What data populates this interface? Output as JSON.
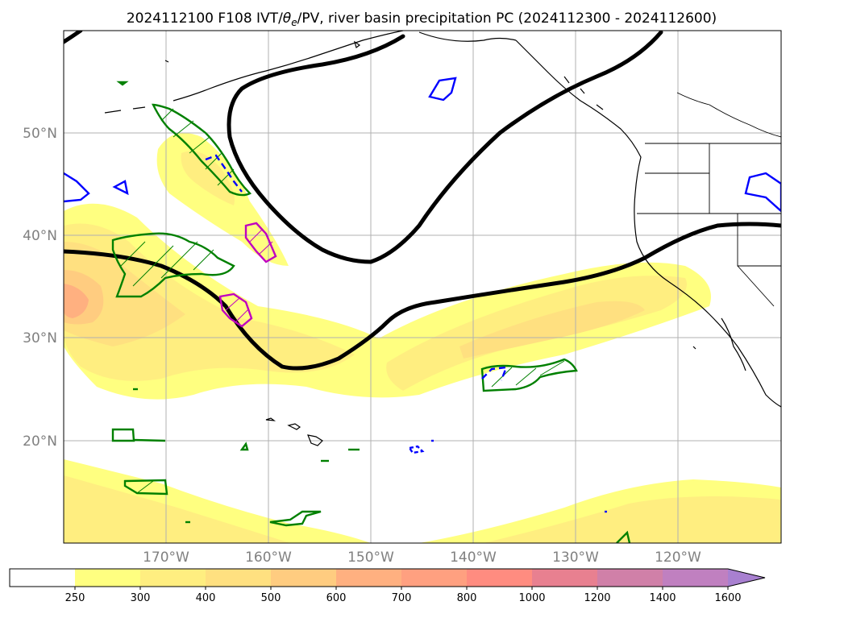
{
  "title": {
    "prefix": "2024112100 F108 IVT/",
    "theta": "θ",
    "subscript": "e",
    "suffix": "/PV, river basin precipitation PC (2024112300 - 2024112600)"
  },
  "latitude_labels": [
    "50°N",
    "40°N",
    "30°N",
    "20°N"
  ],
  "longitude_labels": [
    "170°W",
    "160°W",
    "150°W",
    "140°W",
    "130°W",
    "120°W"
  ],
  "colorbar": {
    "ticks": [
      "250",
      "300",
      "400",
      "500",
      "600",
      "700",
      "800",
      "1000",
      "1200",
      "1400",
      "1600"
    ],
    "colors": [
      "#ffffff",
      "#ffff80",
      "#ffee80",
      "#ffe080",
      "#ffcc80",
      "#ffb080",
      "#ffa080",
      "#ff8c80",
      "#e88090",
      "#d080a8",
      "#c080c0",
      "#a880d0"
    ],
    "extend": "max"
  },
  "chart_data": {
    "type": "map",
    "projection": "PlateCarree",
    "lon_range": [
      -180,
      -110
    ],
    "lat_range": [
      10,
      60
    ],
    "gridlines": true,
    "layers": [
      "IVT filled contours (kg m-1 s-1)",
      "PV contour (black)",
      "theta_e anomaly contours (green/blue/magenta)",
      "coastlines",
      "US state borders"
    ],
    "colors": {
      "pv_contour": "#000000",
      "green_contour": "#008000",
      "blue_contour": "#0000ff",
      "magenta_contour": "#c000c0"
    }
  }
}
